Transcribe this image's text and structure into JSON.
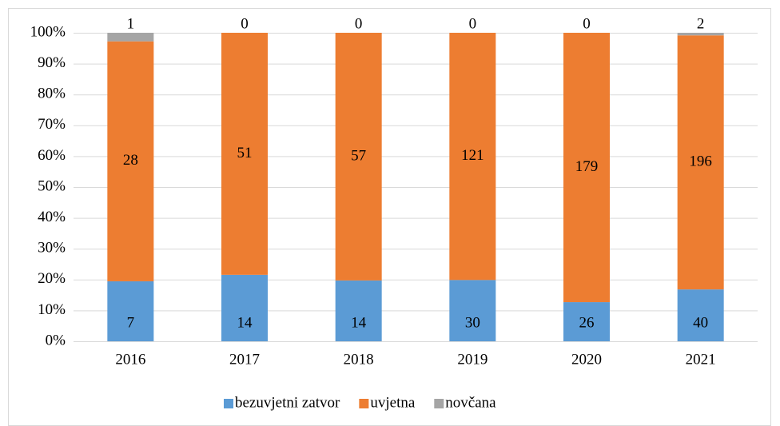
{
  "chart_data": {
    "type": "bar",
    "stacking": "percent",
    "categories": [
      "2016",
      "2017",
      "2018",
      "2019",
      "2020",
      "2021"
    ],
    "series": [
      {
        "name": "bezuvjetni zatvor",
        "color": "#5b9bd5",
        "values": [
          7,
          14,
          14,
          30,
          26,
          40
        ]
      },
      {
        "name": "uvjetna",
        "color": "#ed7d31",
        "values": [
          28,
          51,
          57,
          121,
          179,
          196
        ]
      },
      {
        "name": "novčana",
        "color": "#a5a5a5",
        "values": [
          1,
          0,
          0,
          0,
          0,
          2
        ]
      }
    ],
    "ylim": [
      0,
      100
    ],
    "yticks": [
      {
        "value": 0,
        "label": "0%"
      },
      {
        "value": 10,
        "label": "10%"
      },
      {
        "value": 20,
        "label": "20%"
      },
      {
        "value": 30,
        "label": "30%"
      },
      {
        "value": 40,
        "label": "40%"
      },
      {
        "value": 50,
        "label": "50%"
      },
      {
        "value": 60,
        "label": "60%"
      },
      {
        "value": 70,
        "label": "70%"
      },
      {
        "value": 80,
        "label": "80%"
      },
      {
        "value": 90,
        "label": "90%"
      },
      {
        "value": 100,
        "label": "100%"
      }
    ],
    "grid": true,
    "legend": "bottom"
  }
}
